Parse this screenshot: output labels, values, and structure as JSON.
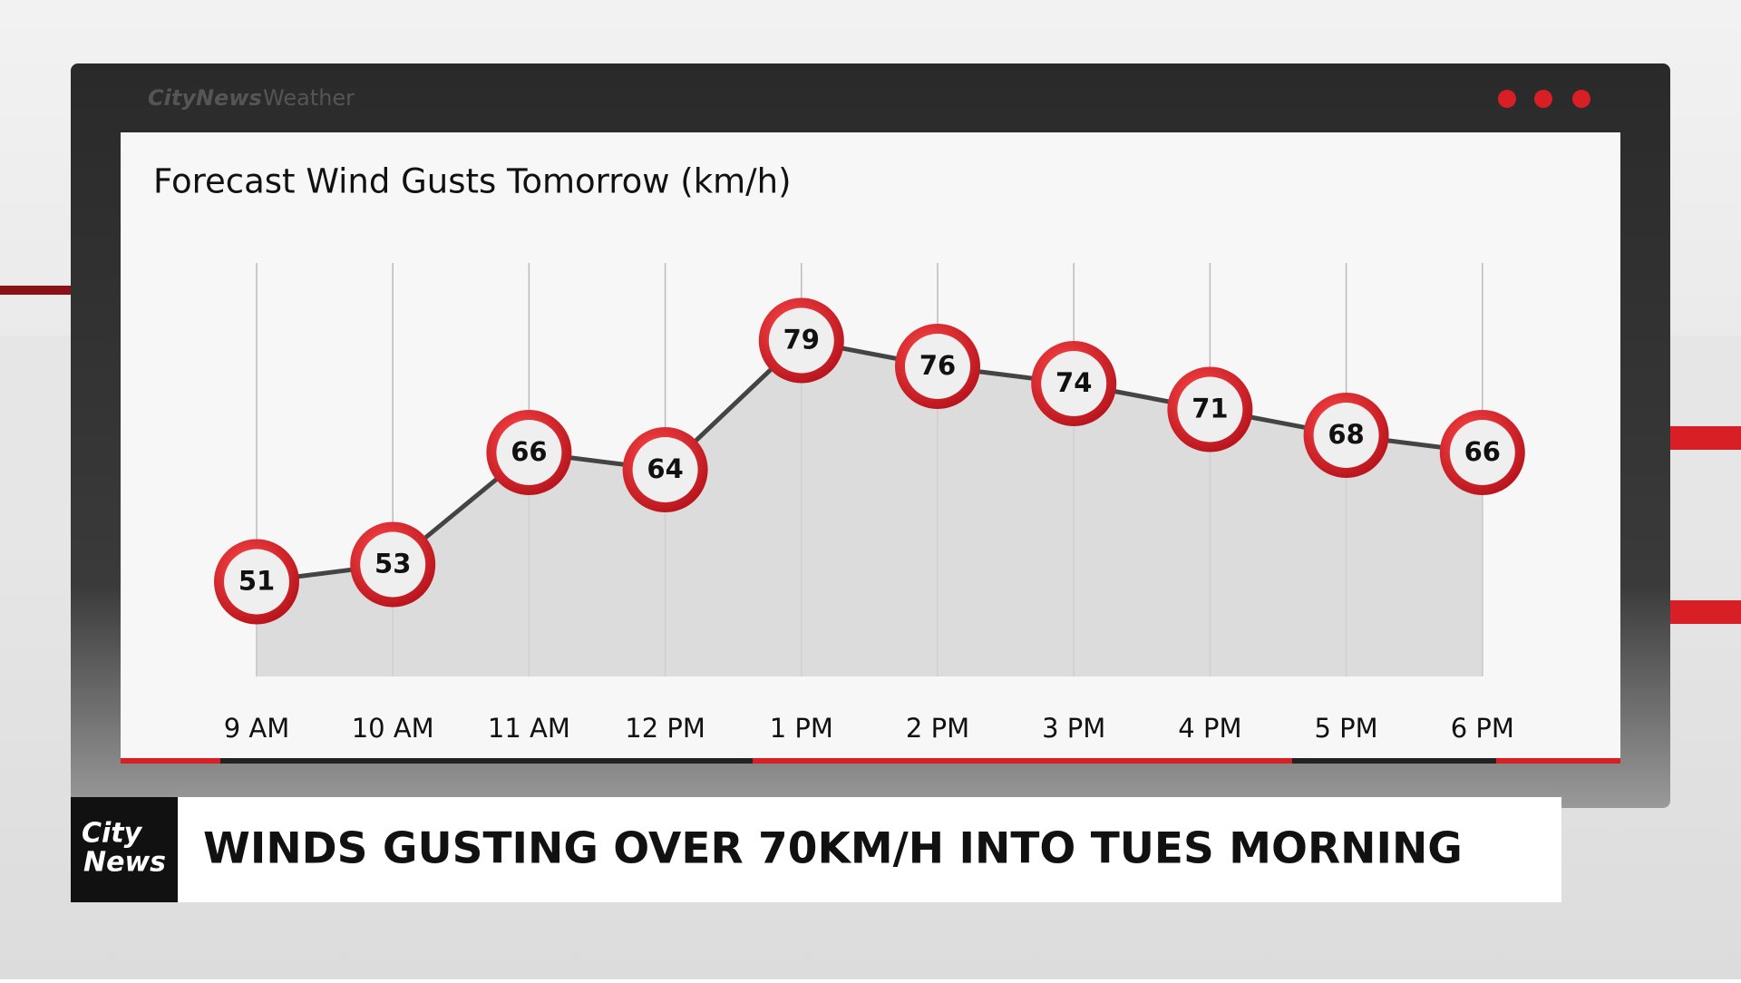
{
  "header": {
    "brand": "CityNews",
    "section": "Weather"
  },
  "chart_data": {
    "type": "line",
    "title": "Forecast Wind Gusts Tomorrow (km/h)",
    "categories": [
      "9 AM",
      "10 AM",
      "11 AM",
      "12 PM",
      "1 PM",
      "2 PM",
      "3 PM",
      "4 PM",
      "5 PM",
      "6 PM"
    ],
    "values": [
      51,
      53,
      66,
      64,
      79,
      76,
      74,
      71,
      68,
      66
    ],
    "color": "#444444",
    "marker_color": "#d81f26",
    "ylim": [
      40,
      88
    ],
    "grid": true
  },
  "lower_third": {
    "logo": [
      "City",
      "News"
    ],
    "headline": "WINDS GUSTING OVER 70KM/H INTO TUES MORNING"
  }
}
